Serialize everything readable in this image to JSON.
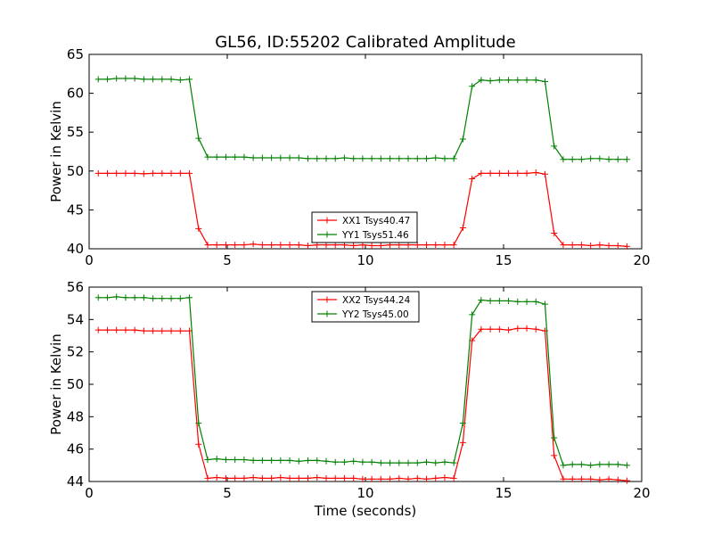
{
  "title": "GL56, ID:55202 Calibrated Amplitude",
  "chart_data": [
    {
      "type": "line",
      "ylabel": "Power in Kelvin",
      "xlabel": "",
      "xlim": [
        0,
        20
      ],
      "ylim": [
        40,
        65
      ],
      "xticks": [
        0,
        5,
        10,
        15,
        20
      ],
      "yticks": [
        40,
        45,
        50,
        55,
        60,
        65
      ],
      "legend_position": "bottom-center",
      "series": [
        {
          "name": "XX1 Tsys40.47",
          "color": "#ff0000",
          "x": [
            0.33,
            0.66,
            0.99,
            1.32,
            1.65,
            1.98,
            2.31,
            2.64,
            2.97,
            3.3,
            3.63,
            3.96,
            4.29,
            4.62,
            4.95,
            5.28,
            5.61,
            5.94,
            6.27,
            6.6,
            6.93,
            7.26,
            7.59,
            7.92,
            8.25,
            8.58,
            8.91,
            9.24,
            9.57,
            9.9,
            10.23,
            10.56,
            10.89,
            11.22,
            11.55,
            11.88,
            12.21,
            12.54,
            12.87,
            13.2,
            13.53,
            13.86,
            14.19,
            14.52,
            14.85,
            15.18,
            15.51,
            15.84,
            16.17,
            16.5,
            16.83,
            17.16,
            17.49,
            17.82,
            18.15,
            18.48,
            18.81,
            19.14,
            19.47
          ],
          "y": [
            49.7,
            49.7,
            49.7,
            49.7,
            49.7,
            49.65,
            49.7,
            49.7,
            49.7,
            49.7,
            49.7,
            42.6,
            40.5,
            40.5,
            40.5,
            40.5,
            40.5,
            40.6,
            40.5,
            40.5,
            40.5,
            40.5,
            40.5,
            40.4,
            40.5,
            40.5,
            40.5,
            40.5,
            40.4,
            40.5,
            40.4,
            40.4,
            40.5,
            40.5,
            40.5,
            40.5,
            40.5,
            40.5,
            40.5,
            40.5,
            42.7,
            49.0,
            49.7,
            49.7,
            49.7,
            49.7,
            49.7,
            49.7,
            49.8,
            49.6,
            42.0,
            40.5,
            40.5,
            40.5,
            40.4,
            40.5,
            40.4,
            40.4,
            40.3
          ]
        },
        {
          "name": "YY1 Tsys51.46",
          "color": "#008000",
          "x": [
            0.33,
            0.66,
            0.99,
            1.32,
            1.65,
            1.98,
            2.31,
            2.64,
            2.97,
            3.3,
            3.63,
            3.96,
            4.29,
            4.62,
            4.95,
            5.28,
            5.61,
            5.94,
            6.27,
            6.6,
            6.93,
            7.26,
            7.59,
            7.92,
            8.25,
            8.58,
            8.91,
            9.24,
            9.57,
            9.9,
            10.23,
            10.56,
            10.89,
            11.22,
            11.55,
            11.88,
            12.21,
            12.54,
            12.87,
            13.2,
            13.53,
            13.86,
            14.19,
            14.52,
            14.85,
            15.18,
            15.51,
            15.84,
            16.17,
            16.5,
            16.83,
            17.16,
            17.49,
            17.82,
            18.15,
            18.48,
            18.81,
            19.14,
            19.47
          ],
          "y": [
            61.8,
            61.8,
            61.9,
            61.9,
            61.9,
            61.8,
            61.8,
            61.8,
            61.8,
            61.7,
            61.8,
            54.2,
            51.8,
            51.8,
            51.8,
            51.8,
            51.8,
            51.7,
            51.7,
            51.7,
            51.7,
            51.7,
            51.7,
            51.6,
            51.6,
            51.6,
            51.6,
            51.7,
            51.6,
            51.6,
            51.6,
            51.6,
            51.6,
            51.6,
            51.6,
            51.6,
            51.6,
            51.7,
            51.6,
            51.6,
            54.1,
            60.9,
            61.7,
            61.6,
            61.7,
            61.7,
            61.7,
            61.7,
            61.7,
            61.5,
            53.2,
            51.5,
            51.5,
            51.5,
            51.6,
            51.6,
            51.5,
            51.5,
            51.5
          ]
        }
      ]
    },
    {
      "type": "line",
      "ylabel": "Power in Kelvin",
      "xlabel": "Time (seconds)",
      "xlim": [
        0,
        20
      ],
      "ylim": [
        44,
        56
      ],
      "xticks": [
        0,
        5,
        10,
        15,
        20
      ],
      "yticks": [
        44,
        46,
        48,
        50,
        52,
        54,
        56
      ],
      "legend_position": "top-center",
      "series": [
        {
          "name": "XX2 Tsys44.24",
          "color": "#ff0000",
          "x": [
            0.33,
            0.66,
            0.99,
            1.32,
            1.65,
            1.98,
            2.31,
            2.64,
            2.97,
            3.3,
            3.63,
            3.96,
            4.29,
            4.62,
            4.95,
            5.28,
            5.61,
            5.94,
            6.27,
            6.6,
            6.93,
            7.26,
            7.59,
            7.92,
            8.25,
            8.58,
            8.91,
            9.24,
            9.57,
            9.9,
            10.23,
            10.56,
            10.89,
            11.22,
            11.55,
            11.88,
            12.21,
            12.54,
            12.87,
            13.2,
            13.53,
            13.86,
            14.19,
            14.52,
            14.85,
            15.18,
            15.51,
            15.84,
            16.17,
            16.5,
            16.83,
            17.16,
            17.49,
            17.82,
            18.15,
            18.48,
            18.81,
            19.14,
            19.47
          ],
          "y": [
            53.35,
            53.35,
            53.35,
            53.35,
            53.35,
            53.3,
            53.3,
            53.3,
            53.3,
            53.3,
            53.3,
            46.3,
            44.2,
            44.25,
            44.2,
            44.2,
            44.2,
            44.25,
            44.2,
            44.2,
            44.25,
            44.2,
            44.2,
            44.2,
            44.25,
            44.2,
            44.2,
            44.2,
            44.2,
            44.15,
            44.15,
            44.15,
            44.15,
            44.2,
            44.15,
            44.2,
            44.15,
            44.2,
            44.25,
            44.2,
            46.4,
            52.7,
            53.4,
            53.4,
            53.4,
            53.35,
            53.45,
            53.45,
            53.4,
            53.3,
            45.6,
            44.15,
            44.15,
            44.15,
            44.15,
            44.1,
            44.15,
            44.1,
            44.05
          ]
        },
        {
          "name": "YY2 Tsys45.00",
          "color": "#008000",
          "x": [
            0.33,
            0.66,
            0.99,
            1.32,
            1.65,
            1.98,
            2.31,
            2.64,
            2.97,
            3.3,
            3.63,
            3.96,
            4.29,
            4.62,
            4.95,
            5.28,
            5.61,
            5.94,
            6.27,
            6.6,
            6.93,
            7.26,
            7.59,
            7.92,
            8.25,
            8.58,
            8.91,
            9.24,
            9.57,
            9.9,
            10.23,
            10.56,
            10.89,
            11.22,
            11.55,
            11.88,
            12.21,
            12.54,
            12.87,
            13.2,
            13.53,
            13.86,
            14.19,
            14.52,
            14.85,
            15.18,
            15.51,
            15.84,
            16.17,
            16.5,
            16.83,
            17.16,
            17.49,
            17.82,
            18.15,
            18.48,
            18.81,
            19.14,
            19.47
          ],
          "y": [
            55.35,
            55.35,
            55.4,
            55.35,
            55.35,
            55.35,
            55.3,
            55.3,
            55.3,
            55.3,
            55.35,
            47.6,
            45.35,
            45.4,
            45.35,
            45.35,
            45.35,
            45.3,
            45.3,
            45.3,
            45.3,
            45.3,
            45.25,
            45.3,
            45.3,
            45.25,
            45.2,
            45.2,
            45.25,
            45.2,
            45.2,
            45.15,
            45.15,
            45.15,
            45.15,
            45.15,
            45.2,
            45.15,
            45.2,
            45.15,
            47.6,
            54.3,
            55.2,
            55.15,
            55.15,
            55.15,
            55.1,
            55.1,
            55.1,
            54.95,
            46.7,
            45.0,
            45.05,
            45.05,
            45.0,
            45.05,
            45.05,
            45.05,
            45.0
          ]
        }
      ]
    }
  ]
}
